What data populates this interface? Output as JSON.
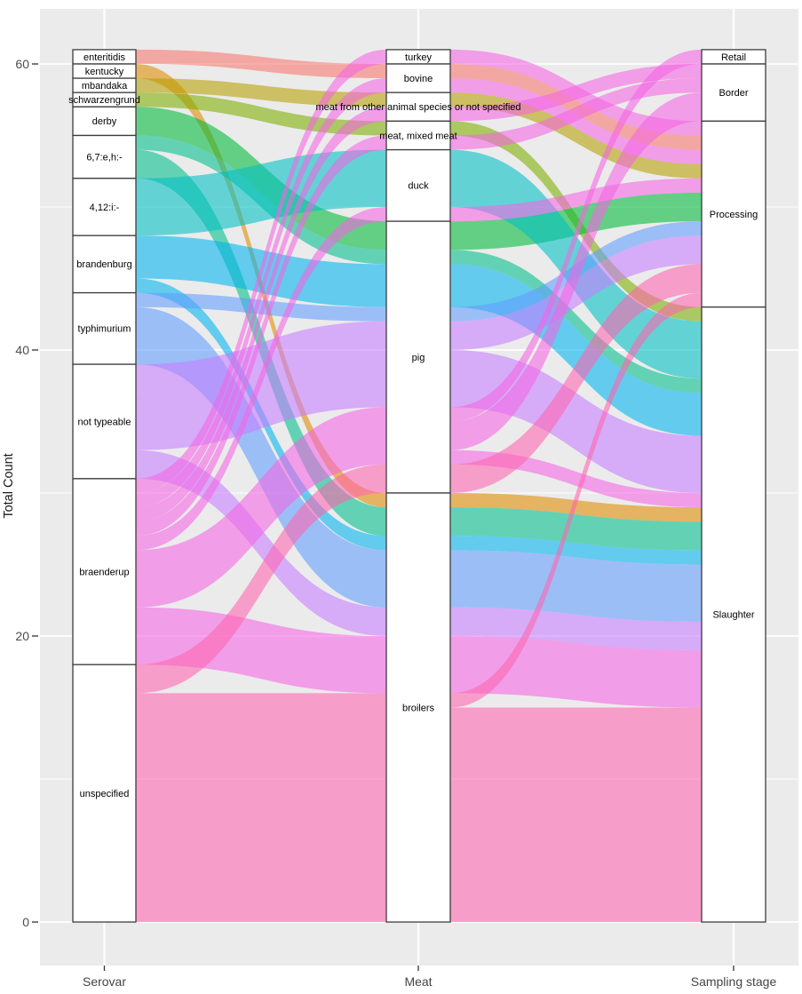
{
  "chart_data": {
    "type": "alluvial",
    "title": "",
    "ylabel": "Total Count",
    "y_ticks": [
      {
        "label": "0",
        "value": 0
      },
      {
        "label": "20",
        "value": 20
      },
      {
        "label": "40",
        "value": 40
      },
      {
        "label": "60",
        "value": 60
      }
    ],
    "y_minor_ticks": [
      10,
      30,
      50
    ],
    "ylim": [
      0,
      61
    ],
    "total": 61,
    "grid": "on",
    "legend": "none",
    "panel_bg": "#EBEBEB",
    "grid_color": "#FFFFFF",
    "stratum_fill": "#FFFFFF",
    "stratum_stroke": "#3C3C3C",
    "flow_opacity": 0.58,
    "axes": [
      {
        "key": "serovar",
        "name": "Serovar",
        "strata": [
          {
            "label": "enteritidis",
            "value": 1
          },
          {
            "label": "kentucky",
            "value": 1
          },
          {
            "label": "mbandaka",
            "value": 1
          },
          {
            "label": "schwarzengrund",
            "value": 1
          },
          {
            "label": "derby",
            "value": 2
          },
          {
            "label": "6,7:e,h:-",
            "value": 3
          },
          {
            "label": "4,12:i:-",
            "value": 4
          },
          {
            "label": "brandenburg",
            "value": 4
          },
          {
            "label": "typhimurium",
            "value": 5
          },
          {
            "label": "not typeable",
            "value": 8
          },
          {
            "label": "braenderup",
            "value": 13
          },
          {
            "label": "unspecified",
            "value": 18
          }
        ]
      },
      {
        "key": "meat",
        "name": "Meat",
        "strata": [
          {
            "label": "turkey",
            "value": 1
          },
          {
            "label": "bovine",
            "value": 2
          },
          {
            "label": "meat from other animal species or not specified",
            "value": 2
          },
          {
            "label": "meat, mixed meat",
            "value": 2
          },
          {
            "label": "duck",
            "value": 5
          },
          {
            "label": "pig",
            "value": 19
          },
          {
            "label": "broilers",
            "value": 30
          }
        ]
      },
      {
        "key": "stage",
        "name": "Sampling stage",
        "strata": [
          {
            "label": "Retail",
            "value": 1
          },
          {
            "label": "Border",
            "value": 4
          },
          {
            "label": "Processing",
            "value": 13
          },
          {
            "label": "Slaughter",
            "value": 43
          }
        ]
      }
    ],
    "colors": {
      "enteritidis": "#F8766D",
      "kentucky": "#DE8C00",
      "mbandaka": "#B79F00",
      "schwarzengrund": "#7CAE00",
      "derby": "#00BA38",
      "6,7:e,h:-": "#00C08B",
      "4,12:i:-": "#00BFC4",
      "brandenburg": "#00B4F0",
      "typhimurium": "#619CFF",
      "not typeable": "#C77CFF",
      "braenderup": "#F564E3",
      "unspecified": "#FF64B0"
    },
    "flows": [
      {
        "serovar": "enteritidis",
        "meat": "bovine",
        "stage": "Processing",
        "value": 1
      },
      {
        "serovar": "kentucky",
        "meat": "broilers",
        "stage": "Slaughter",
        "value": 1
      },
      {
        "serovar": "mbandaka",
        "meat": "meat from other animal species or not specified",
        "stage": "Processing",
        "value": 1
      },
      {
        "serovar": "schwarzengrund",
        "meat": "meat, mixed meat",
        "stage": "Slaughter",
        "value": 1
      },
      {
        "serovar": "derby",
        "meat": "pig",
        "stage": "Processing",
        "value": 2
      },
      {
        "serovar": "6,7:e,h:-",
        "meat": "pig",
        "stage": "Slaughter",
        "value": 1
      },
      {
        "serovar": "6,7:e,h:-",
        "meat": "broilers",
        "stage": "Slaughter",
        "value": 2
      },
      {
        "serovar": "4,12:i:-",
        "meat": "duck",
        "stage": "Slaughter",
        "value": 4
      },
      {
        "serovar": "brandenburg",
        "meat": "pig",
        "stage": "Slaughter",
        "value": 3
      },
      {
        "serovar": "brandenburg",
        "meat": "broilers",
        "stage": "Slaughter",
        "value": 1
      },
      {
        "serovar": "typhimurium",
        "meat": "pig",
        "stage": "Processing",
        "value": 1
      },
      {
        "serovar": "typhimurium",
        "meat": "broilers",
        "stage": "Slaughter",
        "value": 4
      },
      {
        "serovar": "not typeable",
        "meat": "pig",
        "stage": "Processing",
        "value": 2
      },
      {
        "serovar": "not typeable",
        "meat": "pig",
        "stage": "Slaughter",
        "value": 4
      },
      {
        "serovar": "not typeable",
        "meat": "broilers",
        "stage": "Slaughter",
        "value": 2
      },
      {
        "serovar": "braenderup",
        "meat": "turkey",
        "stage": "Processing",
        "value": 1
      },
      {
        "serovar": "braenderup",
        "meat": "bovine",
        "stage": "Processing",
        "value": 1
      },
      {
        "serovar": "braenderup",
        "meat": "meat from other animal species or not specified",
        "stage": "Border",
        "value": 1
      },
      {
        "serovar": "braenderup",
        "meat": "meat, mixed meat",
        "stage": "Border",
        "value": 1
      },
      {
        "serovar": "braenderup",
        "meat": "duck",
        "stage": "Processing",
        "value": 1
      },
      {
        "serovar": "braenderup",
        "meat": "pig",
        "stage": "Retail",
        "value": 1
      },
      {
        "serovar": "braenderup",
        "meat": "pig",
        "stage": "Border",
        "value": 2
      },
      {
        "serovar": "braenderup",
        "meat": "pig",
        "stage": "Slaughter",
        "value": 1
      },
      {
        "serovar": "braenderup",
        "meat": "broilers",
        "stage": "Slaughter",
        "value": 4
      },
      {
        "serovar": "unspecified",
        "meat": "pig",
        "stage": "Processing",
        "value": 2
      },
      {
        "serovar": "unspecified",
        "meat": "broilers",
        "stage": "Processing",
        "value": 1
      },
      {
        "serovar": "unspecified",
        "meat": "broilers",
        "stage": "Slaughter",
        "value": 15
      }
    ]
  }
}
